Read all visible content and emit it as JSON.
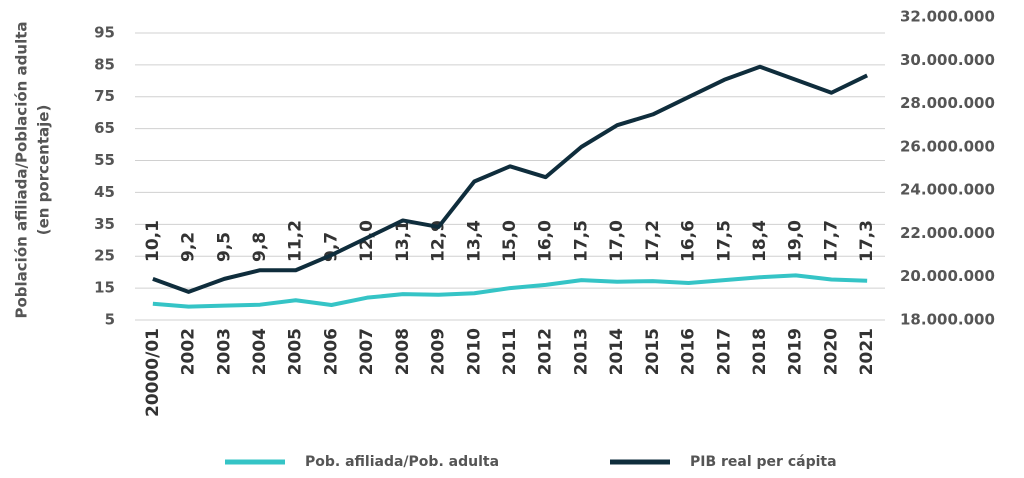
{
  "chart_data": {
    "type": "line",
    "y_label": [
      "Población afiliada/Población adulta",
      "(en porcentaje)"
    ],
    "categories": [
      "20000/01",
      "2002",
      "2003",
      "2004",
      "2005",
      "2006",
      "2007",
      "2008",
      "2009",
      "2010",
      "2011",
      "2012",
      "2013",
      "2014",
      "2015",
      "2016",
      "2017",
      "2018",
      "2019",
      "2020",
      "2021"
    ],
    "series": [
      {
        "name": "Pob. afiliada/Pob. adulta",
        "color": "#35c4c6",
        "axis": "y",
        "values": [
          10.1,
          9.2,
          9.5,
          9.8,
          11.2,
          9.7,
          12.0,
          13.1,
          12.9,
          13.4,
          15.0,
          16.0,
          17.5,
          17.0,
          17.2,
          16.6,
          17.5,
          18.4,
          19.0,
          17.7,
          17.3
        ],
        "value_labels": [
          "10,1",
          "9,2",
          "9,5",
          "9,8",
          "11,2",
          "9,7",
          "12,0",
          "13,1",
          "12,9",
          "13,4",
          "15,0",
          "16,0",
          "17,5",
          "17,0",
          "17,2",
          "16,6",
          "17,5",
          "18,4",
          "19,0",
          "17,7",
          "17,3"
        ]
      },
      {
        "name": "PIB real per cápita",
        "color": "#0f2d3c",
        "axis": "y2",
        "values": [
          19900000,
          19300000,
          19900000,
          20300000,
          20300000,
          21000000,
          21800000,
          22600000,
          22300000,
          24400000,
          25100000,
          24600000,
          26000000,
          27000000,
          27500000,
          28300000,
          29100000,
          29700000,
          29100000,
          28500000,
          29300000
        ]
      }
    ],
    "ylim": [
      5,
      100
    ],
    "yticks": [
      5,
      15,
      25,
      35,
      45,
      55,
      65,
      75,
      85,
      95
    ],
    "y2lim": [
      18000000,
      32000000
    ],
    "y2ticks": [
      {
        "value": 18000000,
        "label": "18.000.000"
      },
      {
        "value": 20000000,
        "label": "20.000.000"
      },
      {
        "value": 22000000,
        "label": "22.000.000"
      },
      {
        "value": 24000000,
        "label": "24.000.000"
      },
      {
        "value": 26000000,
        "label": "26.000.000"
      },
      {
        "value": 28000000,
        "label": "28.000.000"
      },
      {
        "value": 30000000,
        "label": "30.000.000"
      },
      {
        "value": 32000000,
        "label": "32.000.000"
      }
    ],
    "grid": true
  }
}
